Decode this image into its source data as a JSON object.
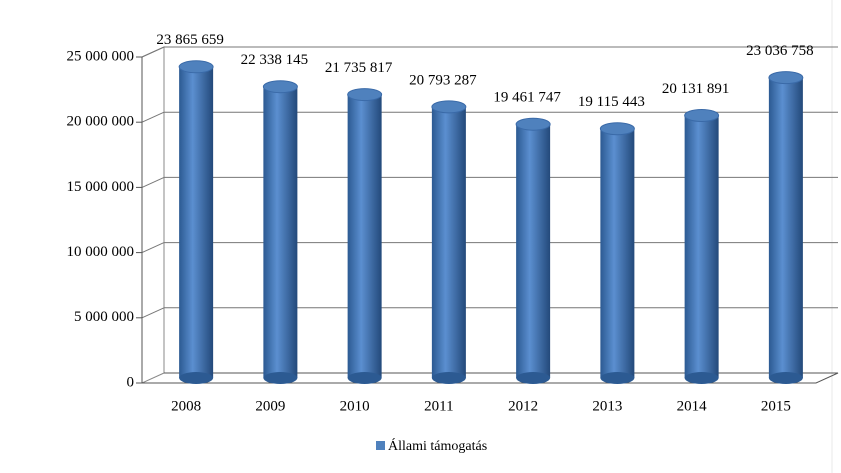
{
  "chart_data": {
    "type": "bar",
    "categories": [
      "2008",
      "2009",
      "2010",
      "2011",
      "2012",
      "2013",
      "2014",
      "2015"
    ],
    "series": [
      {
        "name": "Állami támogatás",
        "color": "#4f81bd",
        "values": [
          23865659,
          22338145,
          21735817,
          20793287,
          19461747,
          19115443,
          20131891,
          23036758
        ],
        "value_labels": [
          "23 865 659",
          "22 338 145",
          "21 735 817",
          "20 793 287",
          "19 461 747",
          "19 115 443",
          "20 131 891",
          "23 036 758"
        ]
      }
    ],
    "ylim": [
      0,
      25000000
    ],
    "yticks": [
      {
        "value": 0,
        "label": "0"
      },
      {
        "value": 5000000,
        "label": "5 000 000"
      },
      {
        "value": 10000000,
        "label": "10 000 000"
      },
      {
        "value": 15000000,
        "label": "15 000 000"
      },
      {
        "value": 20000000,
        "label": "20 000 000"
      },
      {
        "value": 25000000,
        "label": "25 000 000"
      }
    ],
    "grid": true,
    "legend": "bottom"
  }
}
